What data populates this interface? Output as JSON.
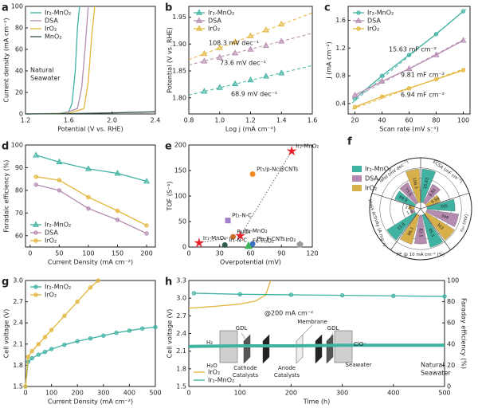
{
  "chart_data": [
    {
      "panel": "a",
      "type": "line",
      "xlabel": "Potential (V vs. RHE)",
      "ylabel": "Current density (mA cm⁻²)",
      "xlim": [
        1.2,
        2.4
      ],
      "xticks": [
        1.2,
        1.6,
        {
          "value": 2,
          "label": "2.0"
        },
        2.4
      ],
      "ylim": [
        0,
        100
      ],
      "yticks": [
        0,
        20,
        40,
        60,
        80,
        100
      ],
      "legend": "upper left",
      "annotations": [
        {
          "text": "Natural",
          "color": "#222222"
        },
        {
          "text": "Seawater",
          "color": "#222222"
        }
      ],
      "series": [
        {
          "name": "Ir₂-MnO₂",
          "color": "#3fb2a2",
          "x": [
            1.2,
            1.5,
            1.6,
            1.63,
            1.66,
            1.68,
            1.7
          ],
          "values": [
            0,
            0.3,
            2,
            10,
            40,
            80,
            100
          ]
        },
        {
          "name": "DSA",
          "color": "#b58bb0",
          "x": [
            1.2,
            1.55,
            1.68,
            1.72,
            1.75,
            1.78
          ],
          "values": [
            0,
            0.5,
            5,
            25,
            60,
            100
          ]
        },
        {
          "name": "IrO₂",
          "color": "#e3b53a",
          "x": [
            1.2,
            1.6,
            1.74,
            1.78,
            1.81,
            1.84
          ],
          "values": [
            0,
            0.5,
            5,
            30,
            70,
            100
          ]
        },
        {
          "name": "MnO₂",
          "color": "#2f4f4f",
          "x": [
            1.2,
            1.6,
            2.0,
            2.4
          ],
          "values": [
            0,
            0.3,
            1,
            2
          ]
        }
      ]
    },
    {
      "panel": "b",
      "type": "line",
      "xlabel": "Log j (mA cm⁻²)",
      "ylabel": "Potential (V vs. RHE)",
      "xlim": [
        0.8,
        1.6
      ],
      "xticks": [
        0.8,
        {
          "value": 1,
          "label": "1.0"
        },
        1.2,
        1.4,
        1.6
      ],
      "ylim": [
        1.77,
        1.97
      ],
      "yticks": [
        {
          "value": 1.8,
          "label": "1.80"
        },
        1.85,
        {
          "value": 1.9,
          "label": "1.90"
        },
        1.95
      ],
      "legend": "upper left",
      "annotations": [
        {
          "text": "108.3 mV dec⁻¹",
          "color": "#e3b53a"
        },
        {
          "text": "73.6 mV dec⁻¹",
          "color": "#b58bb0"
        },
        {
          "text": "68.9 mV dec⁻¹",
          "color": "#3fb2a2"
        }
      ],
      "series": [
        {
          "name": "Ir₂-MnO₂",
          "color": "#3fb2a2",
          "marker": "triangle",
          "x": [
            0.9,
            1.0,
            1.1,
            1.2,
            1.3,
            1.4
          ],
          "values": [
            1.812,
            1.819,
            1.826,
            1.833,
            1.84,
            1.846
          ],
          "fit": {
            "x": [
              0.8,
              1.6
            ],
            "values": [
              1.805,
              1.86
            ]
          }
        },
        {
          "name": "DSA",
          "color": "#b58bb0",
          "marker": "triangle",
          "x": [
            0.9,
            1.0,
            1.1,
            1.2,
            1.3,
            1.4
          ],
          "values": [
            1.868,
            1.875,
            1.883,
            1.89,
            1.897,
            1.905
          ],
          "fit": {
            "x": [
              0.8,
              1.6
            ],
            "values": [
              1.861,
              1.92
            ]
          }
        },
        {
          "name": "IrO₂",
          "color": "#e3b53a",
          "marker": "triangle",
          "x": [
            0.9,
            1.0,
            1.1,
            1.2,
            1.3,
            1.4
          ],
          "values": [
            1.882,
            1.893,
            1.904,
            1.915,
            1.926,
            1.937
          ],
          "fit": {
            "x": [
              0.8,
              1.6
            ],
            "values": [
              1.871,
              1.958
            ]
          }
        }
      ]
    },
    {
      "panel": "c",
      "type": "line",
      "xlabel": "Scan rate (mV s⁻¹)",
      "ylabel": "J (mA cm⁻²)",
      "xlim": [
        15,
        105
      ],
      "xticks": [
        20,
        40,
        60,
        80,
        100
      ],
      "ylim": [
        0.25,
        1.8
      ],
      "yticks": [
        0.4,
        0.8,
        1.2,
        1.6
      ],
      "legend": "upper left",
      "annotations": [
        {
          "text": "15.63 mF cm⁻²",
          "color": "#3fb2a2"
        },
        {
          "text": "9.81 mF cm⁻²",
          "color": "#b58bb0"
        },
        {
          "text": "6.94 mF cm⁻²",
          "color": "#e3b53a"
        }
      ],
      "series": [
        {
          "name": "Ir₂-MnO₂",
          "color": "#3fb2a2",
          "marker": "circle",
          "x": [
            20,
            40,
            60,
            80,
            100
          ],
          "values": [
            0.47,
            0.8,
            1.1,
            1.4,
            1.73
          ],
          "fit": {
            "x": [
              18,
              102
            ],
            "values": [
              0.41,
              1.76
            ]
          }
        },
        {
          "name": "DSA",
          "color": "#b58bb0",
          "marker": "triangle",
          "x": [
            20,
            40,
            60,
            80,
            100
          ],
          "values": [
            0.52,
            0.72,
            0.9,
            1.1,
            1.31
          ],
          "fit": {
            "x": [
              18,
              102
            ],
            "values": [
              0.47,
              1.34
            ]
          }
        },
        {
          "name": "IrO₂",
          "color": "#e3b53a",
          "marker": "circle",
          "x": [
            20,
            40,
            60,
            80,
            100
          ],
          "values": [
            0.35,
            0.5,
            0.62,
            0.75,
            0.88
          ],
          "fit": {
            "x": [
              18,
              102
            ],
            "values": [
              0.32,
              0.91
            ]
          }
        }
      ]
    },
    {
      "panel": "d",
      "type": "line",
      "xlabel": "Current Density (mA cm⁻²)",
      "ylabel": "Faradaic efficiency (%)",
      "xlim": [
        -8,
        215
      ],
      "xticks": [
        0,
        50,
        100,
        150,
        200
      ],
      "ylim": [
        55,
        100
      ],
      "yticks": [
        60,
        70,
        80,
        90,
        100
      ],
      "legend": "lower left",
      "series": [
        {
          "name": "Ir₂-MnO₂",
          "color": "#3fb2a2",
          "marker": "triangle",
          "x": [
            10,
            50,
            100,
            150,
            200
          ],
          "values": [
            95.5,
            92.5,
            89.5,
            87.5,
            84
          ]
        },
        {
          "name": "DSA",
          "color": "#b58bb0",
          "marker": "circle",
          "x": [
            10,
            50,
            100,
            150,
            200
          ],
          "values": [
            82.5,
            80,
            72,
            67,
            61
          ]
        },
        {
          "name": "IrO₂",
          "color": "#e3b53a",
          "marker": "circle",
          "x": [
            10,
            50,
            100,
            150,
            200
          ],
          "values": [
            86,
            84.5,
            77,
            71,
            64.5
          ]
        }
      ]
    },
    {
      "panel": "e",
      "type": "scatter",
      "xlabel": "Overpotential (mV)",
      "ylabel": "TOF (S⁻¹)",
      "xlim": [
        0,
        120
      ],
      "xticks": [
        0,
        30,
        60,
        90,
        120
      ],
      "ylim": [
        0,
        200
      ],
      "yticks": [
        0,
        50,
        100,
        150,
        200
      ],
      "points": [
        {
          "label": "Ir₁-MnO₂",
          "x": 10,
          "y": 8,
          "color": "#e8212a",
          "marker": "star"
        },
        {
          "label": "Ir₂-MnO₂",
          "x": 50,
          "y": 22,
          "color": "#e8212a",
          "marker": "star"
        },
        {
          "label": "Ir₂-MnO₂",
          "x": 100,
          "y": 188,
          "color": "#e8212a",
          "marker": "star"
        },
        {
          "label": "Pt₁/p-Nc@CNTs",
          "x": 62,
          "y": 143,
          "color": "#f08a24",
          "marker": "circle"
        },
        {
          "label": "Pt₁-N-C",
          "x": 38,
          "y": 52,
          "color": "#a07ec8",
          "marker": "square"
        },
        {
          "label": "RuO₂",
          "x": 43,
          "y": 20,
          "color": "#c8702a",
          "marker": "circle"
        },
        {
          "label": "Ir₁-N-C",
          "x": 35,
          "y": 4,
          "color": "#2f5f4f",
          "marker": "circle"
        },
        {
          "label": "Pt₁-F-CNTs",
          "x": 62,
          "y": 6,
          "color": "#3a74c4",
          "marker": "circle"
        },
        {
          "label": "Fe-Ti₃O₂",
          "x": 58,
          "y": 2,
          "color": "#3fb25a",
          "marker": "triangle"
        },
        {
          "label": "IrO₂",
          "x": 108,
          "y": 5,
          "color": "#9a9a9a",
          "marker": "pentagon"
        }
      ]
    },
    {
      "panel": "f",
      "type": "polar",
      "categories": [
        "ECSA (mF cm⁻²)",
        "η₁₀ (mV)",
        "FE @ 10 mA cm⁻² (%)",
        "Mass activity (A mg⁻¹)",
        "Tafel (mV dec⁻¹)"
      ],
      "legend": "upper left",
      "series": [
        {
          "name": "Ir₂-MnO₂",
          "color": "#3fb2a2",
          "values": [
            15.63,
            305,
            95.5,
            15.6,
            68.9
          ]
        },
        {
          "name": "DSA",
          "color": "#b58bb0",
          "values": [
            9.81,
            348,
            82.5,
            1.8,
            73.6
          ]
        },
        {
          "name": "IrO₂",
          "color": "#d8b049",
          "values": [
            6.94,
            363,
            86.1,
            2.6,
            108.3
          ]
        }
      ]
    },
    {
      "panel": "g",
      "type": "line",
      "xlabel": "Current Density (mA cm⁻²)",
      "ylabel": "Cell voltage (V)",
      "xlim": [
        0,
        500
      ],
      "xticks": [
        0,
        100,
        200,
        300,
        400,
        500
      ],
      "ylim": [
        1.5,
        3
      ],
      "yticks": [
        1.5,
        1.8,
        2.1,
        2.4,
        2.7,
        {
          "value": 3,
          "label": "3.0"
        }
      ],
      "legend": "upper left",
      "series": [
        {
          "name": "Ir₂-MnO₂",
          "color": "#3fb2a2",
          "marker": "circle",
          "x": [
            0,
            10,
            25,
            50,
            75,
            100,
            150,
            200,
            250,
            300,
            350,
            400,
            450,
            500
          ],
          "values": [
            1.5,
            1.85,
            1.9,
            1.95,
            1.99,
            2.03,
            2.09,
            2.14,
            2.18,
            2.22,
            2.26,
            2.29,
            2.32,
            2.34
          ]
        },
        {
          "name": "IrO₂",
          "color": "#e3b53a",
          "marker": "circle",
          "x": [
            0,
            10,
            25,
            50,
            75,
            100,
            150,
            200,
            250,
            280
          ],
          "values": [
            1.5,
            1.92,
            2.0,
            2.1,
            2.2,
            2.3,
            2.5,
            2.7,
            2.9,
            3.0
          ]
        }
      ]
    },
    {
      "panel": "h",
      "type": "line",
      "xlabel": "Time (h)",
      "ylabel": "Cell voltage (V)",
      "y2label": "Faraday efficiency (%)",
      "xlim": [
        0,
        500
      ],
      "xticks": [
        0,
        100,
        200,
        300,
        400,
        500
      ],
      "ylim": [
        1.5,
        3.3
      ],
      "yticks": [
        1.5,
        1.8,
        2.1,
        2.4,
        2.7,
        {
          "value": 3,
          "label": "3.0"
        },
        3.3
      ],
      "y2lim": [
        0,
        100
      ],
      "y2ticks": [
        0,
        20,
        40,
        60,
        80,
        100
      ],
      "legend": "lower left",
      "annotations": [
        {
          "text": "@200 mA cm⁻²",
          "color": "#3fb2a2"
        },
        {
          "text": "Natural",
          "color": "#222222"
        },
        {
          "text": "Seawater",
          "color": "#222222"
        },
        {
          "text": "GDL",
          "color": "#222222"
        },
        {
          "text": "Membrane",
          "color": "#222222"
        },
        {
          "text": "GDL",
          "color": "#222222"
        },
        {
          "text": "H₂",
          "color": "#222222"
        },
        {
          "text": "H₂O",
          "color": "#222222"
        },
        {
          "text": "Cathode",
          "color": "#222222"
        },
        {
          "text": "Catalysts",
          "color": "#222222"
        },
        {
          "text": "Anode",
          "color": "#222222"
        },
        {
          "text": "Catalysts",
          "color": "#222222"
        },
        {
          "text": "ClO⁻",
          "color": "#222222"
        },
        {
          "text": "Seawater",
          "color": "#222222"
        }
      ],
      "series": [
        {
          "name": "IrO₂",
          "color": "#e3b53a",
          "x": [
            0,
            50,
            100,
            130,
            150,
            160
          ],
          "values": [
            2.83,
            2.86,
            2.9,
            2.95,
            3.05,
            3.3
          ]
        },
        {
          "name": "Ir₂-MnO₂",
          "color": "#3fb2a2",
          "width": 4,
          "x": [
            0,
            100,
            200,
            300,
            400,
            500
          ],
          "values": [
            2.18,
            2.19,
            2.19,
            2.2,
            2.2,
            2.2
          ]
        },
        {
          "color": "#3fb2a2",
          "axis": "y2",
          "marker": "circle",
          "x": [
            10,
            100,
            200,
            300,
            400,
            500
          ],
          "values": [
            88,
            87,
            86.5,
            86,
            85.5,
            85
          ]
        }
      ]
    }
  ]
}
